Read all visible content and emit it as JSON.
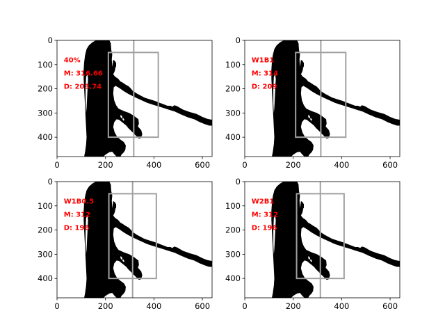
{
  "chart_data": [
    {
      "type": "image",
      "annotations": [
        "40%",
        "M: 316.66",
        "D: 203.74"
      ],
      "xlim": [
        0,
        640
      ],
      "ylim": [
        480,
        0
      ],
      "xticks": [
        0,
        200,
        400,
        600
      ],
      "yticks": [
        0,
        100,
        200,
        300,
        400
      ],
      "box": {
        "x0": 212,
        "x1": 418,
        "y0": 50,
        "y1": 400
      },
      "midline_x": 316.66,
      "box_color": "#a0a0a0",
      "annotation_color": "#ff0000"
    },
    {
      "type": "image",
      "annotations": [
        "W1B1",
        "M: 314",
        "D: 209"
      ],
      "xlim": [
        0,
        640
      ],
      "ylim": [
        480,
        0
      ],
      "xticks": [
        0,
        200,
        400,
        600
      ],
      "yticks": [
        0,
        100,
        200,
        300,
        400
      ],
      "box": {
        "x0": 210,
        "x1": 417,
        "y0": 50,
        "y1": 400
      },
      "midline_x": 314,
      "box_color": "#a0a0a0",
      "annotation_color": "#ff0000"
    },
    {
      "type": "image",
      "annotations": [
        "W1B0.5",
        "M: 312",
        "D: 196"
      ],
      "xlim": [
        0,
        640
      ],
      "ylim": [
        480,
        0
      ],
      "xticks": [
        0,
        200,
        400,
        600
      ],
      "yticks": [
        0,
        100,
        200,
        300,
        400
      ],
      "box": {
        "x0": 214,
        "x1": 410,
        "y0": 50,
        "y1": 400
      },
      "midline_x": 312,
      "box_color": "#a0a0a0",
      "annotation_color": "#ff0000"
    },
    {
      "type": "image",
      "annotations": [
        "W2B1",
        "M: 312",
        "D: 196"
      ],
      "xlim": [
        0,
        640
      ],
      "ylim": [
        480,
        0
      ],
      "xticks": [
        0,
        200,
        400,
        600
      ],
      "yticks": [
        0,
        100,
        200,
        300,
        400
      ],
      "box": {
        "x0": 214,
        "x1": 410,
        "y0": 50,
        "y1": 400
      },
      "midline_x": 312,
      "box_color": "#a0a0a0",
      "annotation_color": "#ff0000"
    }
  ]
}
